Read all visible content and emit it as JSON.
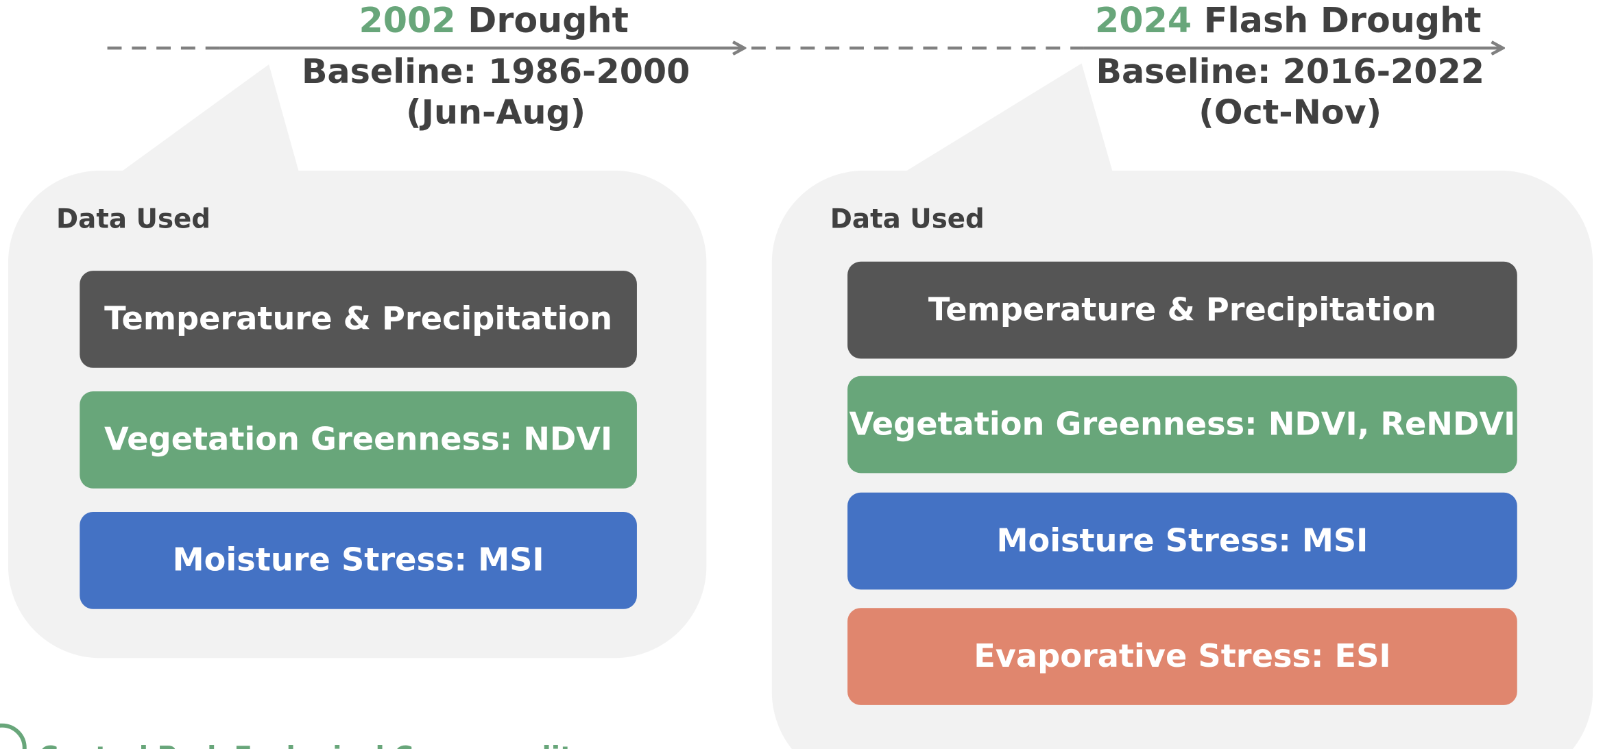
{
  "timeline": [
    {
      "year": "2002",
      "title": "Drought",
      "baseline": "Baseline: 1986-2000",
      "months": "(Jun-Aug)",
      "panel": {
        "heading": "Data Used",
        "items": [
          {
            "label": "Temperature & Precipitation",
            "color": "#555555"
          },
          {
            "label": "Vegetation Greenness: NDVI",
            "color": "#68a67a"
          },
          {
            "label": "Moisture Stress: MSI",
            "color": "#4472c4"
          }
        ]
      }
    },
    {
      "year": "2024",
      "title": "Flash Drought",
      "baseline": "Baseline: 2016-2022",
      "months": "(Oct-Nov)",
      "panel": {
        "heading": "Data Used",
        "items": [
          {
            "label": "Temperature & Precipitation",
            "color": "#555555"
          },
          {
            "label": "Vegetation Greenness: NDVI, ReNDVI",
            "color": "#68a67a"
          },
          {
            "label": "Moisture Stress: MSI",
            "color": "#4472c4"
          },
          {
            "label": "Evaporative Stress: ESI",
            "color": "#e0866e"
          }
        ]
      }
    }
  ],
  "footer": "Central Park Ecological Commonality"
}
